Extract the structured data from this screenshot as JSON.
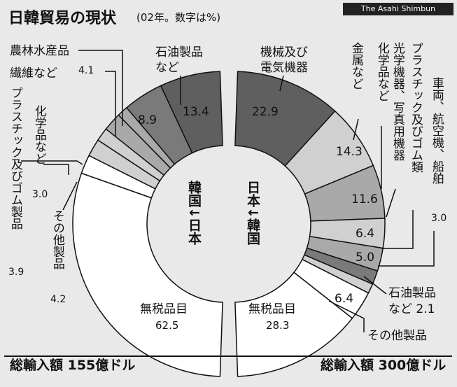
{
  "title": "日韓貿易の現状",
  "subtitle": "(02年。数字は%)",
  "credit": "The Asahi Shimbun",
  "colors": {
    "background": "#e9e9e9",
    "white": "#ffffff",
    "light": "#d0d0d0",
    "mid": "#a9a9a9",
    "dark": "#7a7a7a",
    "darker": "#5f5f5f"
  },
  "chart_data": [
    {
      "type": "pie",
      "direction_label": "韓国→日本",
      "total_label": "総輸入額 155億ドル",
      "slices": [
        {
          "name": "無税品目",
          "value": 62.5
        },
        {
          "name": "その他製品",
          "value": 4.2
        },
        {
          "name": "プラスチック及びゴム製品",
          "value": 3.9
        },
        {
          "name": "化学品など",
          "value": 3.0
        },
        {
          "name": "繊維など",
          "value": 4.1
        },
        {
          "name": "農林水産品",
          "value": null
        },
        {
          "name": "石油製品など",
          "value": 8.9
        },
        {
          "name": "",
          "value": 13.4
        }
      ]
    },
    {
      "type": "pie",
      "direction_label": "日本→韓国",
      "total_label": "総輸入額 300億ドル",
      "slices": [
        {
          "name": "機械及び電気機器",
          "value": 22.9
        },
        {
          "name": "金属など",
          "value": 14.3
        },
        {
          "name": "化学品など",
          "value": 11.6
        },
        {
          "name": "光学機器、写真用機器",
          "value": 6.4
        },
        {
          "name": "プラスチック及びゴム類",
          "value": 5.0
        },
        {
          "name": "車両、航空機、船舶",
          "value": 3.0
        },
        {
          "name": "石油製品など",
          "value": 2.1
        },
        {
          "name": "その他製品",
          "value": 6.4
        },
        {
          "name": "無税品目",
          "value": 28.3
        }
      ]
    }
  ],
  "labels": {
    "left_mid_value": "8.9",
    "left_top_value": "13.4",
    "right_values": [
      "22.9",
      "14.3",
      "11.6",
      "6.4",
      "5.0",
      "6.4"
    ],
    "left_center_text": "韓国↓日本",
    "right_center_text": "日本↓韓国",
    "left_free_label": "無税品目",
    "left_free_value": "62.5",
    "right_free_label": "無税品目",
    "right_free_value": "28.3",
    "left_total": "総輸入額 155億ドル",
    "right_total": "総輸入額 300億ドル",
    "ann_nourin": "農林水産品",
    "ann_sen": "繊維など",
    "ann_sen_val": "4.1",
    "ann_sekiyu_l": "石油製品",
    "ann_sekiyu_l2": "など",
    "ann_plastic_l": "プラスチック及びゴム製品",
    "ann_plastic_l_val": "3.9",
    "ann_chem_l": "化学品など",
    "ann_chem_l_val": "3.0",
    "ann_other_l": "その他製品",
    "ann_other_l_val": "4.2",
    "ann_kikai": "機械及び",
    "ann_kikai2": "電気機器",
    "ann_kinzoku": "金属など",
    "ann_chem_r": "化学品など",
    "ann_optical": "光学機器、写真用機器",
    "ann_plastic_r": "プラスチック及びゴム類",
    "ann_vehicle": "車両、航空機、船舶",
    "ann_vehicle_val": "3.0",
    "ann_sekiyu_r": "石油製品",
    "ann_sekiyu_r2": "など 2.1",
    "ann_other_r": "その他製品"
  }
}
